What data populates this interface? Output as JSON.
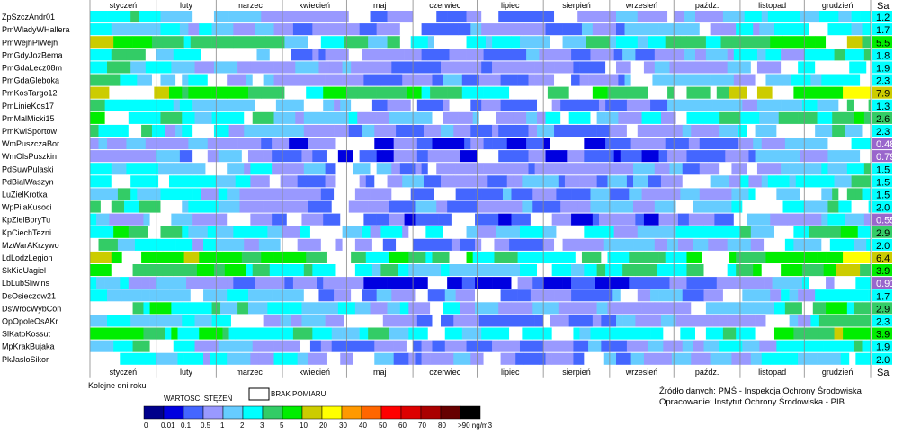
{
  "chart_data": {
    "type": "heatmap",
    "x_label": "Kolejne dni roku",
    "months": [
      "styczeń",
      "luty",
      "marzec",
      "kwiecień",
      "maj",
      "czerwiec",
      "lipiec",
      "sierpień",
      "wrzesień",
      "paźdz.",
      "listopad",
      "grudzień"
    ],
    "month_days": [
      31,
      28,
      31,
      30,
      31,
      30,
      31,
      31,
      30,
      31,
      30,
      31
    ],
    "sa_header": "Sa",
    "stations": [
      {
        "name": "ZpSzczAndr01",
        "sa": "1.2"
      },
      {
        "name": "PmWladyWHallera",
        "sa": "1.7"
      },
      {
        "name": "PmWejhPlWejh",
        "sa": "5.5"
      },
      {
        "name": "PmGdyJozBema",
        "sa": "1.8"
      },
      {
        "name": "PmGdaLecz08m",
        "sa": "1.9"
      },
      {
        "name": "PmGdaGleboka",
        "sa": "2.3"
      },
      {
        "name": "PmKosTargo12",
        "sa": "7.9"
      },
      {
        "name": "PmLinieKos17",
        "sa": "1.3"
      },
      {
        "name": "PmMalMicki15",
        "sa": "2.6"
      },
      {
        "name": "PmKwiSportow",
        "sa": "2.3"
      },
      {
        "name": "WmPuszczaBor",
        "sa": "0.48"
      },
      {
        "name": "WmOlsPuszkin",
        "sa": "0.79"
      },
      {
        "name": "PdSuwPulaski",
        "sa": "1.5"
      },
      {
        "name": "PdBialWaszyn",
        "sa": "1.5"
      },
      {
        "name": "LuZielKrotka",
        "sa": "1.5"
      },
      {
        "name": "WpPilaKusoci",
        "sa": "2.0"
      },
      {
        "name": "KpZielBoryTu",
        "sa": "0.55"
      },
      {
        "name": "KpCiechTezni",
        "sa": "2.9"
      },
      {
        "name": "MzWarAKrzywo",
        "sa": "2.0"
      },
      {
        "name": "LdLodzLegion",
        "sa": "6.4"
      },
      {
        "name": "SkKieUagiel",
        "sa": "3.9"
      },
      {
        "name": "LbLubSliwins",
        "sa": "0.91"
      },
      {
        "name": "DsOsieczow21",
        "sa": "1.7"
      },
      {
        "name": "DsWrocWybCon",
        "sa": "2.9"
      },
      {
        "name": "OpOpoleOsAKr",
        "sa": "2.3"
      },
      {
        "name": "SlKatoKossut",
        "sa": "3.9"
      },
      {
        "name": "MpKrakBujaka",
        "sa": "1.9"
      },
      {
        "name": "PkJasloSikor",
        "sa": "2.0"
      }
    ],
    "legend": {
      "title": "WARTOSCI STĘŻEŃ",
      "missing_label": "BRAK POMIARU",
      "ticks": [
        "0",
        "0.01",
        "0.1",
        "0.5",
        "1",
        "2",
        "3",
        "5",
        "10",
        "20",
        "30",
        "40",
        "50",
        "60",
        "70",
        "80",
        ">90 ng/m3"
      ],
      "colors": [
        "#00008b",
        "#0000e0",
        "#4466ff",
        "#9999ff",
        "#66ccff",
        "#00ffff",
        "#33cc66",
        "#00ee00",
        "#cccc00",
        "#ffff00",
        "#ff9900",
        "#ff6600",
        "#ff0000",
        "#dd0000",
        "#aa0000",
        "#660000",
        "#000000"
      ]
    },
    "source": "Źródło danych: PMŚ - Inspekcja Ochrony Środowiska",
    "prepared": "Opracowanie: Instytut Ochrony Środowiska - PIB"
  }
}
